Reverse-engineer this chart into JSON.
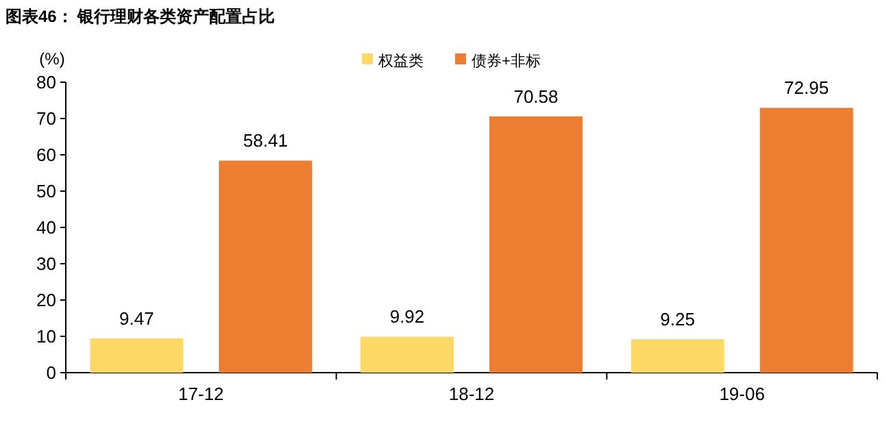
{
  "chart_data": {
    "type": "bar",
    "title": "图表46：  银行理财各类资产配置占比",
    "ylabel": "(%)",
    "categories": [
      "17-12",
      "18-12",
      "19-06"
    ],
    "series": [
      {
        "name": "权益类",
        "color": "#ffd966",
        "values": [
          9.47,
          9.92,
          9.25
        ]
      },
      {
        "name": "债券+非标",
        "color": "#ed7d31",
        "values": [
          58.41,
          70.58,
          72.95
        ]
      }
    ],
    "ylim": [
      0,
      80
    ],
    "yticks": [
      0,
      10,
      20,
      30,
      40,
      50,
      60,
      70,
      80
    ],
    "data_labels": true,
    "legend": "top",
    "grid": false
  }
}
